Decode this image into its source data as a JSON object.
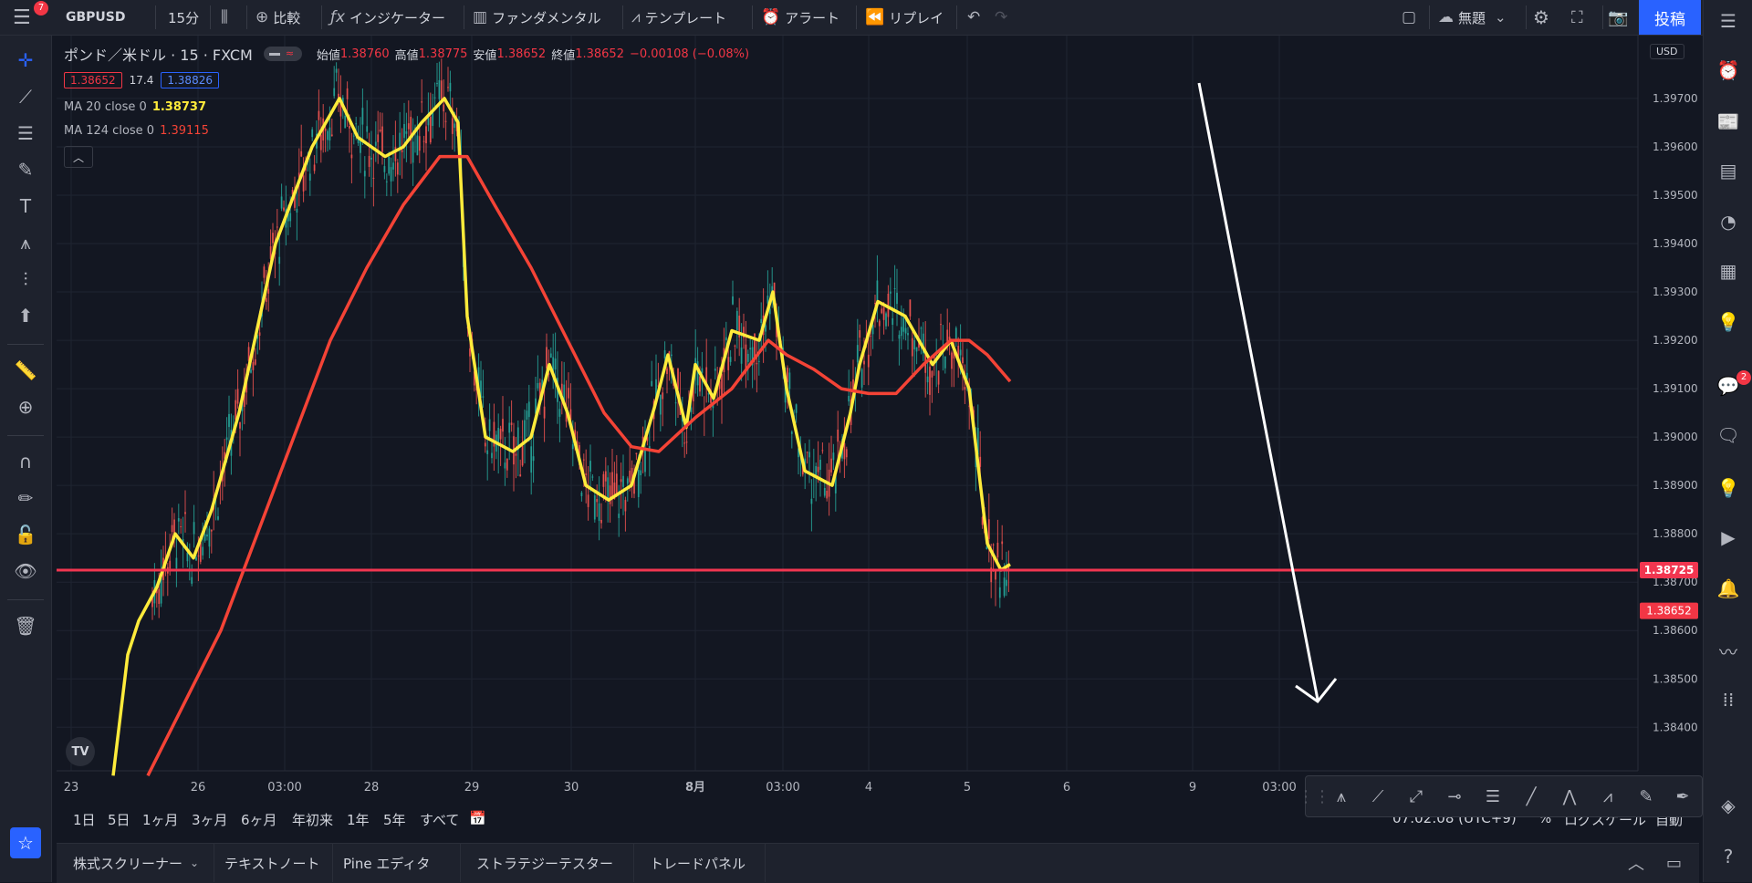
{
  "topbar": {
    "menu_badge": "7",
    "symbol": "GBPUSD",
    "interval": "15分",
    "compare": "比較",
    "indicators": "インジケーター",
    "fundamentals": "ファンダメンタル",
    "templates": "テンプレート",
    "alert": "アラート",
    "replay": "リプレイ",
    "layout_name": "無題",
    "post": "投稿"
  },
  "legend": {
    "title": "ポンド／米ドル · 15 · FXCM",
    "open_label": "始値",
    "open": "1.38760",
    "high_label": "高値",
    "high": "1.38775",
    "low_label": "安値",
    "low": "1.38652",
    "close_label": "終値",
    "close": "1.38652",
    "change": "−0.00108 (−0.08%)",
    "sell_price": "1.38652",
    "spread": "17.4",
    "buy_price": "1.38826",
    "ma1_label": "MA 20 close 0",
    "ma1_value": "1.38737",
    "ma2_label": "MA 124 close 0",
    "ma2_value": "1.39115"
  },
  "currency": "USD",
  "chart_data": {
    "type": "candlestick",
    "symbol": "GBPUSD",
    "interval": "15",
    "y_axis": {
      "ticks": [
        "1.39700",
        "1.39600",
        "1.39500",
        "1.39400",
        "1.39300",
        "1.39200",
        "1.39100",
        "1.39000",
        "1.38900",
        "1.38800",
        "1.38700",
        "1.38600",
        "1.38500",
        "1.38400"
      ],
      "range": [
        1.3831,
        1.3983
      ]
    },
    "x_axis": {
      "ticks": [
        "23",
        "26",
        "03:00",
        "28",
        "29",
        "30",
        "8月",
        "03:00",
        "4",
        "5",
        "6",
        "9",
        "03:00"
      ]
    },
    "series": [
      {
        "name": "MA 20 close 0",
        "color": "#ffeb3b",
        "current": 1.38737,
        "points": [
          [
            0.362,
            1.383
          ],
          [
            0.378,
            1.3855
          ],
          [
            0.39,
            1.3862
          ],
          [
            0.41,
            1.3869
          ],
          [
            0.43,
            1.388
          ],
          [
            0.45,
            1.3875
          ],
          [
            0.47,
            1.3885
          ],
          [
            0.5,
            1.3905
          ],
          [
            0.54,
            1.394
          ],
          [
            0.58,
            1.396
          ],
          [
            0.61,
            1.397
          ],
          [
            0.63,
            1.3962
          ],
          [
            0.66,
            1.3958
          ],
          [
            0.68,
            1.396
          ],
          [
            0.7,
            1.3965
          ],
          [
            0.725,
            1.397
          ],
          [
            0.74,
            1.3965
          ],
          [
            0.75,
            1.3925
          ],
          [
            0.77,
            1.39
          ],
          [
            0.8,
            1.3897
          ],
          [
            0.82,
            1.39
          ],
          [
            0.84,
            1.3915
          ],
          [
            0.86,
            1.3905
          ],
          [
            0.88,
            1.389
          ],
          [
            0.905,
            1.3887
          ],
          [
            0.93,
            1.389
          ],
          [
            0.955,
            1.3906
          ],
          [
            0.97,
            1.3917
          ],
          [
            0.99,
            1.3902
          ],
          [
            1.0,
            1.3915
          ],
          [
            1.02,
            1.3908
          ],
          [
            1.04,
            1.3922
          ],
          [
            1.07,
            1.392
          ],
          [
            1.085,
            1.393
          ],
          [
            1.1,
            1.391
          ],
          [
            1.12,
            1.3893
          ],
          [
            1.15,
            1.389
          ],
          [
            1.17,
            1.3905
          ],
          [
            1.18,
            1.3915
          ],
          [
            1.2,
            1.3928
          ],
          [
            1.23,
            1.3925
          ],
          [
            1.26,
            1.3915
          ],
          [
            1.28,
            1.392
          ],
          [
            1.3,
            1.391
          ],
          [
            1.32,
            1.3878
          ],
          [
            1.335,
            1.38725
          ],
          [
            1.345,
            1.38737
          ]
        ]
      },
      {
        "name": "MA 124 close 0",
        "color": "#f44336",
        "current": 1.39115,
        "points": [
          [
            0.4,
            1.383
          ],
          [
            0.44,
            1.3845
          ],
          [
            0.48,
            1.386
          ],
          [
            0.52,
            1.388
          ],
          [
            0.56,
            1.39
          ],
          [
            0.6,
            1.392
          ],
          [
            0.64,
            1.3935
          ],
          [
            0.68,
            1.3948
          ],
          [
            0.72,
            1.3958
          ],
          [
            0.75,
            1.3958
          ],
          [
            0.78,
            1.3948
          ],
          [
            0.82,
            1.3935
          ],
          [
            0.86,
            1.392
          ],
          [
            0.9,
            1.3905
          ],
          [
            0.93,
            1.3898
          ],
          [
            0.96,
            1.3897
          ],
          [
            1.0,
            1.3904
          ],
          [
            1.04,
            1.391
          ],
          [
            1.08,
            1.392
          ],
          [
            1.1,
            1.3917
          ],
          [
            1.13,
            1.3914
          ],
          [
            1.16,
            1.391
          ],
          [
            1.19,
            1.3909
          ],
          [
            1.22,
            1.3909
          ],
          [
            1.25,
            1.3915
          ],
          [
            1.28,
            1.392
          ],
          [
            1.3,
            1.392
          ],
          [
            1.32,
            1.3917
          ],
          [
            1.345,
            1.39115
          ]
        ]
      }
    ],
    "horizontal_line": {
      "value": 1.38725,
      "label": "1.38725",
      "color": "#f23650"
    },
    "last_price": {
      "value": 1.38652,
      "label": "1.38652",
      "color": "#f23645"
    },
    "annotation": "white downward arrow"
  },
  "time_range": {
    "buttons": [
      "1日",
      "5日",
      "1ヶ月",
      "3ヶ月",
      "6ヶ月",
      "年初来",
      "1年",
      "5年",
      "すべて"
    ],
    "clock": "07:02:08 (UTC+9)",
    "percent": "%",
    "log": "ログスケール",
    "auto": "自動"
  },
  "bottom_tabs": [
    "株式スクリーナー",
    "テキストノート",
    "Pine エディタ",
    "ストラテジーテスター",
    "トレードパネル"
  ],
  "right_badge": "2",
  "colors": {
    "background": "#131722",
    "panel": "#1e222d",
    "accent": "#2962ff",
    "down": "#f23645",
    "ma20": "#ffeb3b",
    "ma124": "#f44336"
  }
}
